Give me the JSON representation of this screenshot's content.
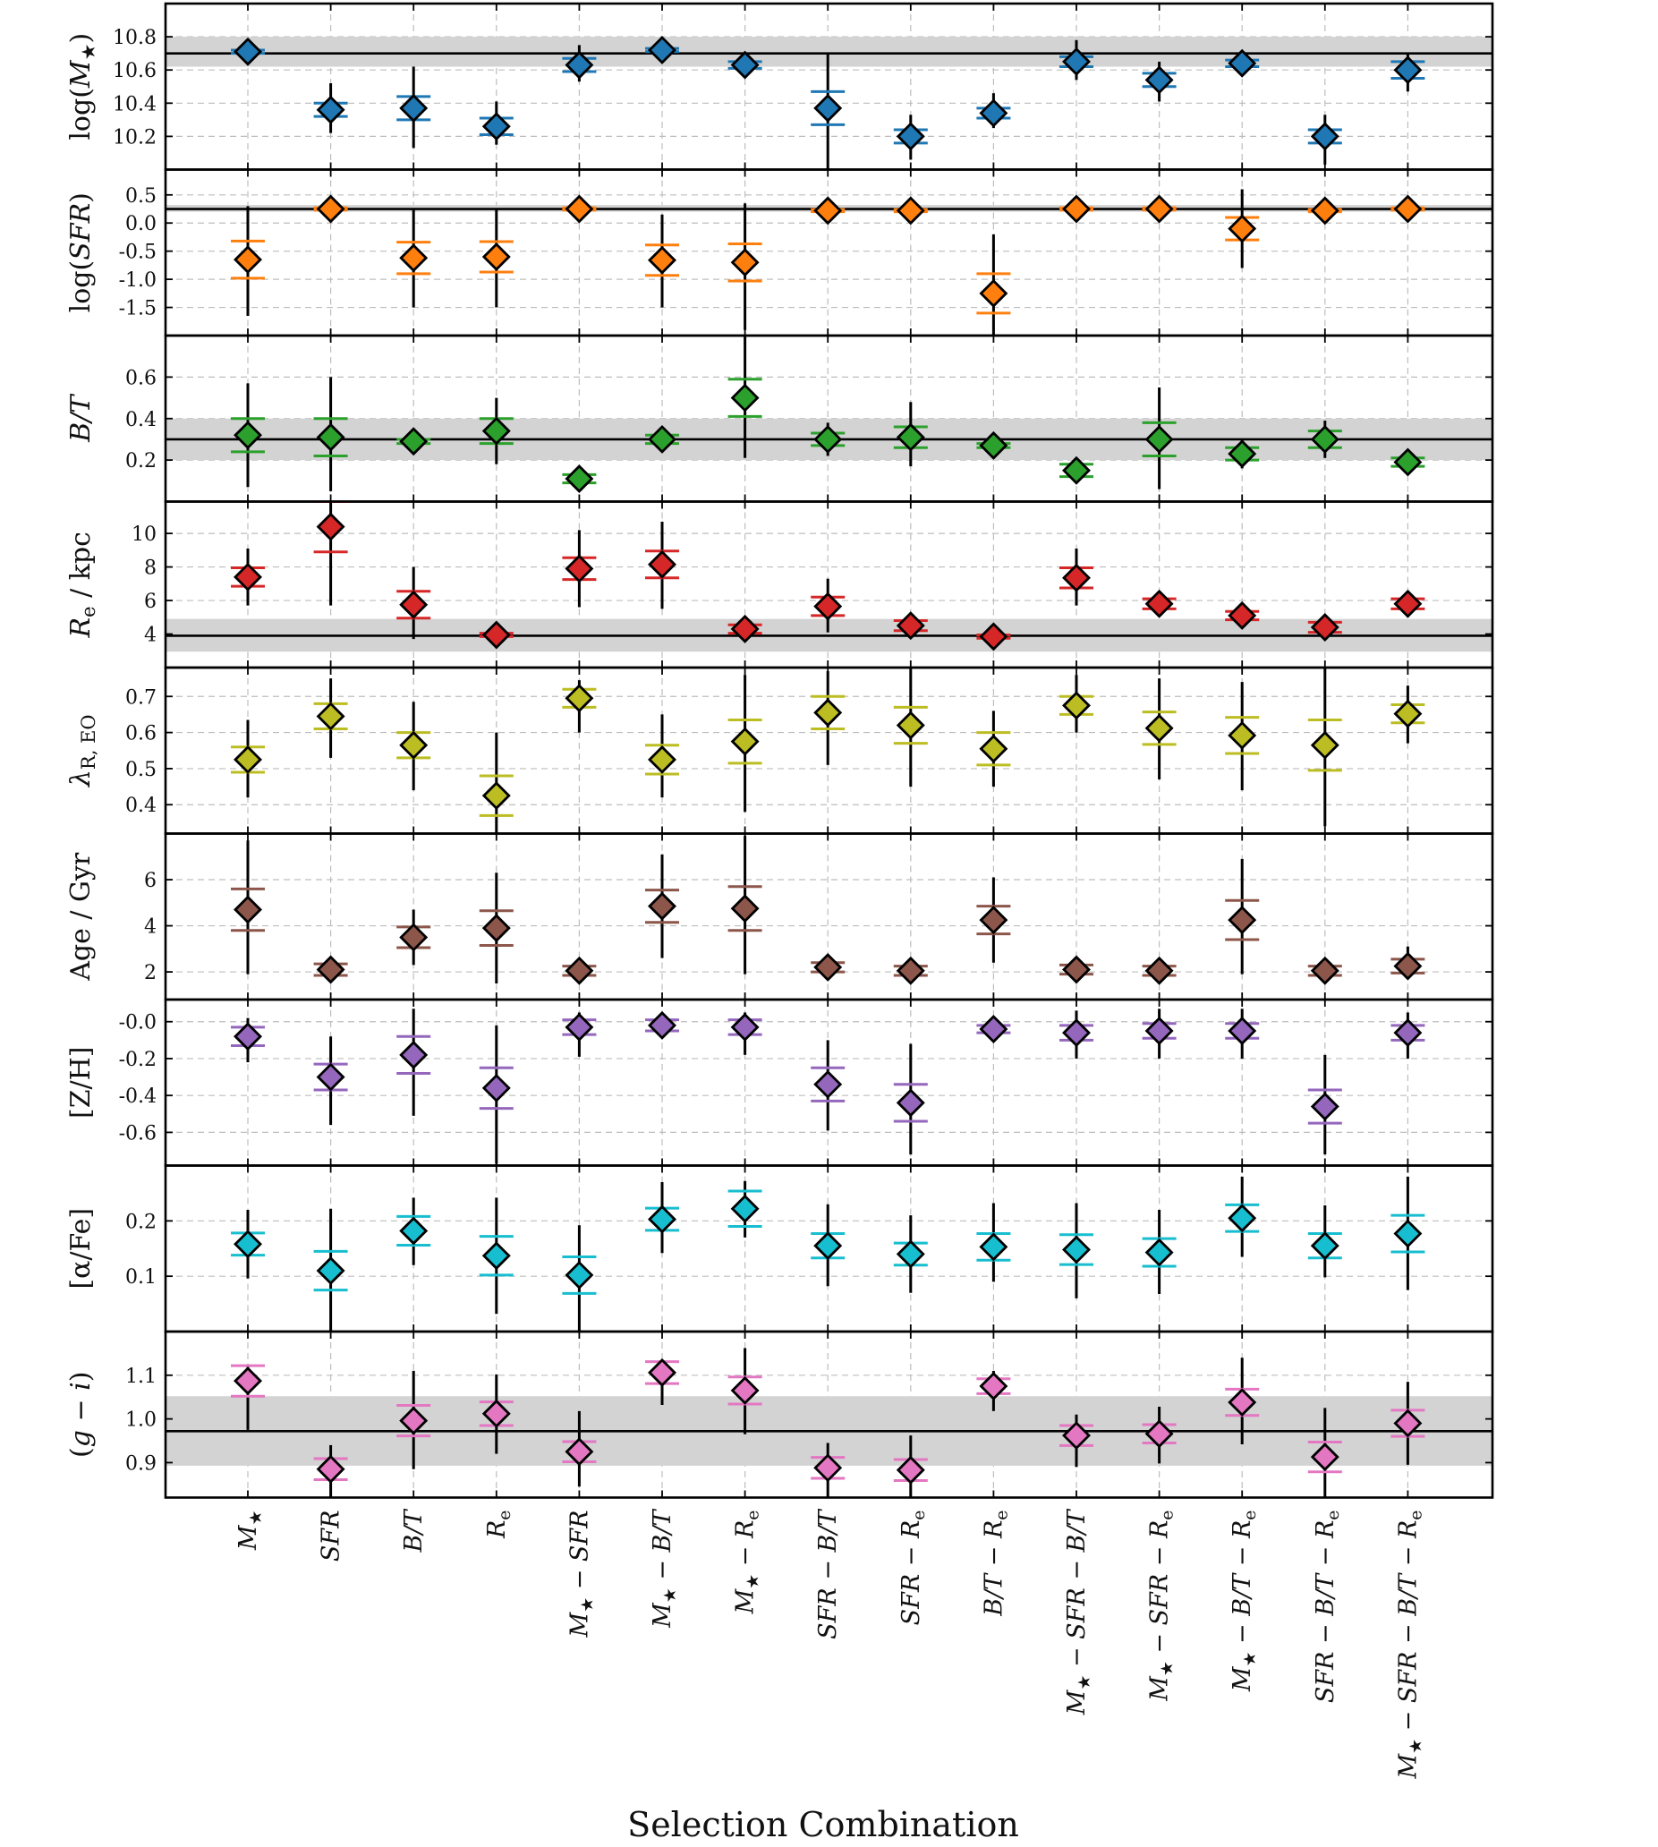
{
  "chart_data": {
    "type": "scatter",
    "xlabel": "Selection Combination",
    "categories": [
      "M★",
      "SFR",
      "B/T",
      "Re",
      "M★ − SFR",
      "M★ − B/T",
      "M★ − Re",
      "SFR − B/T",
      "SFR − Re",
      "B/T − Re",
      "M★ − SFR − B/T",
      "M★ − SFR − Re",
      "M★ − B/T − Re",
      "SFR − B/T − Re",
      "M★ − SFR − B/T − Re"
    ],
    "panels": [
      {
        "ylabel": "log(M★)",
        "color": "#1f77b4",
        "ylim": [
          10.0,
          11.0
        ],
        "ticks": [
          10.2,
          10.4,
          10.6,
          10.8
        ],
        "tick_labels": [
          "10.2",
          "10.4",
          "10.6",
          "10.8"
        ],
        "reference": 10.7,
        "band": [
          10.62,
          10.8
        ],
        "values": [
          10.71,
          10.36,
          10.37,
          10.26,
          10.63,
          10.72,
          10.63,
          10.37,
          10.2,
          10.34,
          10.65,
          10.54,
          10.64,
          10.2,
          10.6
        ],
        "err": [
          0.01,
          0.04,
          0.07,
          0.05,
          0.04,
          0.01,
          0.02,
          0.1,
          0.04,
          0.03,
          0.03,
          0.04,
          0.02,
          0.04,
          0.05
        ],
        "range": [
          [
            10.69,
            10.73
          ],
          [
            10.22,
            10.52
          ],
          [
            10.13,
            10.62
          ],
          [
            10.15,
            10.41
          ],
          [
            10.53,
            10.75
          ],
          [
            10.7,
            10.74
          ],
          [
            10.6,
            10.66
          ],
          [
            10.0,
            10.7
          ],
          [
            10.06,
            10.33
          ],
          [
            10.25,
            10.46
          ],
          [
            10.54,
            10.78
          ],
          [
            10.41,
            10.65
          ],
          [
            10.6,
            10.68
          ],
          [
            10.03,
            10.33
          ],
          [
            10.47,
            10.7
          ]
        ]
      },
      {
        "ylabel": "log(SFR)",
        "color": "#ff7f0e",
        "ylim": [
          -2.0,
          0.95
        ],
        "ticks": [
          -1.5,
          -1.0,
          -0.5,
          0.0,
          0.5
        ],
        "tick_labels": [
          "-1.5",
          "-1.0",
          "-0.5",
          "0.0",
          "0.5"
        ],
        "reference": 0.25,
        "band": [
          0.2,
          0.32
        ],
        "values": [
          -0.65,
          0.25,
          -0.62,
          -0.6,
          0.25,
          -0.66,
          -0.7,
          0.22,
          0.22,
          -1.25,
          0.25,
          0.25,
          -0.1,
          0.22,
          0.25
        ],
        "err": [
          0.33,
          0.02,
          0.28,
          0.27,
          0.02,
          0.27,
          0.33,
          0.02,
          0.02,
          0.35,
          0.02,
          0.02,
          0.2,
          0.02,
          0.02
        ],
        "range": [
          [
            -1.65,
            0.3
          ],
          [
            0.2,
            0.3
          ],
          [
            -1.5,
            0.25
          ],
          [
            -1.5,
            0.25
          ],
          [
            0.2,
            0.3
          ],
          [
            -1.5,
            0.15
          ],
          [
            -1.9,
            0.35
          ],
          [
            0.18,
            0.28
          ],
          [
            0.18,
            0.28
          ],
          [
            -2.0,
            -0.2
          ],
          [
            0.2,
            0.3
          ],
          [
            0.2,
            0.3
          ],
          [
            -0.8,
            0.6
          ],
          [
            0.18,
            0.28
          ],
          [
            0.2,
            0.3
          ]
        ]
      },
      {
        "ylabel": "B/T",
        "color": "#2ca02c",
        "ylim": [
          0.0,
          0.8
        ],
        "ticks": [
          0.2,
          0.4,
          0.6
        ],
        "tick_labels": [
          "0.2",
          "0.4",
          "0.6"
        ],
        "reference": 0.3,
        "band": [
          0.2,
          0.4
        ],
        "values": [
          0.32,
          0.31,
          0.29,
          0.34,
          0.11,
          0.3,
          0.5,
          0.3,
          0.31,
          0.27,
          0.15,
          0.3,
          0.23,
          0.3,
          0.19
        ],
        "err": [
          0.08,
          0.09,
          0.01,
          0.06,
          0.02,
          0.02,
          0.09,
          0.03,
          0.05,
          0.01,
          0.03,
          0.08,
          0.03,
          0.04,
          0.02
        ],
        "range": [
          [
            0.07,
            0.57
          ],
          [
            0.05,
            0.6
          ],
          [
            0.27,
            0.31
          ],
          [
            0.18,
            0.5
          ],
          [
            0.08,
            0.14
          ],
          [
            0.27,
            0.33
          ],
          [
            0.21,
            0.8
          ],
          [
            0.22,
            0.38
          ],
          [
            0.17,
            0.48
          ],
          [
            0.25,
            0.29
          ],
          [
            0.1,
            0.2
          ],
          [
            0.06,
            0.55
          ],
          [
            0.16,
            0.3
          ],
          [
            0.21,
            0.39
          ],
          [
            0.15,
            0.23
          ]
        ]
      },
      {
        "ylabel": "Re / kpc",
        "color": "#d62728",
        "ylim": [
          2.0,
          11.9
        ],
        "ticks": [
          4,
          6,
          8,
          10
        ],
        "tick_labels": [
          "4",
          "6",
          "8",
          "10"
        ],
        "reference": 3.9,
        "band": [
          2.95,
          4.9
        ],
        "values": [
          7.4,
          10.4,
          5.75,
          3.95,
          7.9,
          8.15,
          4.3,
          5.65,
          4.5,
          3.85,
          7.35,
          5.8,
          5.1,
          4.4,
          5.8
        ],
        "err": [
          0.55,
          1.5,
          0.8,
          0.1,
          0.65,
          0.8,
          0.25,
          0.55,
          0.3,
          0.1,
          0.6,
          0.3,
          0.25,
          0.3,
          0.3
        ],
        "range": [
          [
            5.7,
            9.1
          ],
          [
            5.7,
            11.9
          ],
          [
            3.7,
            8.0
          ],
          [
            3.7,
            4.2
          ],
          [
            5.6,
            10.2
          ],
          [
            5.5,
            10.7
          ],
          [
            3.9,
            4.7
          ],
          [
            4.1,
            7.3
          ],
          [
            4.0,
            5.0
          ],
          [
            3.7,
            4.0
          ],
          [
            5.7,
            9.1
          ],
          [
            5.3,
            6.3
          ],
          [
            4.7,
            5.5
          ],
          [
            3.8,
            5.0
          ],
          [
            5.3,
            6.3
          ]
        ]
      },
      {
        "ylabel": "λR, EO",
        "color": "#bcbd22",
        "ylim": [
          0.32,
          0.78
        ],
        "ticks": [
          0.4,
          0.5,
          0.6,
          0.7
        ],
        "tick_labels": [
          "0.4",
          "0.5",
          "0.6",
          "0.7"
        ],
        "reference": null,
        "band": null,
        "values": [
          0.525,
          0.645,
          0.565,
          0.425,
          0.695,
          0.525,
          0.575,
          0.655,
          0.62,
          0.555,
          0.675,
          0.612,
          0.592,
          0.565,
          0.652
        ],
        "err": [
          0.035,
          0.035,
          0.035,
          0.055,
          0.025,
          0.04,
          0.06,
          0.045,
          0.05,
          0.045,
          0.025,
          0.045,
          0.05,
          0.07,
          0.025
        ],
        "range": [
          [
            0.42,
            0.635
          ],
          [
            0.53,
            0.75
          ],
          [
            0.44,
            0.685
          ],
          [
            0.32,
            0.6
          ],
          [
            0.6,
            0.745
          ],
          [
            0.42,
            0.65
          ],
          [
            0.38,
            0.76
          ],
          [
            0.51,
            0.77
          ],
          [
            0.45,
            0.78
          ],
          [
            0.45,
            0.66
          ],
          [
            0.6,
            0.76
          ],
          [
            0.47,
            0.75
          ],
          [
            0.44,
            0.74
          ],
          [
            0.34,
            0.78
          ],
          [
            0.57,
            0.73
          ]
        ]
      },
      {
        "ylabel": "Age / Gyr",
        "color": "#8c564b",
        "ylim": [
          0.8,
          8.0
        ],
        "ticks": [
          2,
          4,
          6
        ],
        "tick_labels": [
          "2",
          "4",
          "6"
        ],
        "reference": null,
        "band": null,
        "values": [
          4.7,
          2.1,
          3.5,
          3.9,
          2.05,
          4.85,
          4.75,
          2.2,
          2.05,
          4.25,
          2.1,
          2.05,
          4.25,
          2.05,
          2.25
        ],
        "err": [
          0.9,
          0.25,
          0.45,
          0.75,
          0.2,
          0.7,
          0.95,
          0.2,
          0.2,
          0.6,
          0.2,
          0.2,
          0.85,
          0.2,
          0.3
        ],
        "range": [
          [
            1.9,
            7.7
          ],
          [
            1.7,
            2.5
          ],
          [
            2.3,
            4.7
          ],
          [
            1.5,
            6.3
          ],
          [
            1.7,
            2.4
          ],
          [
            2.6,
            7.1
          ],
          [
            1.9,
            7.9
          ],
          [
            1.8,
            2.6
          ],
          [
            1.7,
            2.4
          ],
          [
            2.4,
            6.1
          ],
          [
            1.8,
            2.4
          ],
          [
            1.7,
            2.4
          ],
          [
            1.9,
            6.9
          ],
          [
            1.7,
            2.4
          ],
          [
            1.7,
            3.1
          ]
        ]
      },
      {
        "ylabel": "[Z/H]",
        "color": "#9467bd",
        "ylim": [
          -0.78,
          0.12
        ],
        "ticks": [
          -0.6,
          -0.4,
          -0.2,
          -0.0
        ],
        "tick_labels": [
          "-0.6",
          "-0.4",
          "-0.2",
          "-0.0"
        ],
        "reference": null,
        "band": null,
        "values": [
          -0.08,
          -0.3,
          -0.18,
          -0.36,
          -0.03,
          -0.02,
          -0.03,
          -0.34,
          -0.44,
          -0.04,
          -0.06,
          -0.05,
          -0.05,
          -0.46,
          -0.06
        ],
        "err": [
          0.05,
          0.07,
          0.1,
          0.11,
          0.04,
          0.03,
          0.04,
          0.09,
          0.1,
          0.02,
          0.04,
          0.04,
          0.04,
          0.09,
          0.04
        ],
        "range": [
          [
            -0.22,
            0.02
          ],
          [
            -0.56,
            -0.08
          ],
          [
            -0.51,
            0.07
          ],
          [
            -0.77,
            -0.02
          ],
          [
            -0.19,
            0.05
          ],
          [
            -0.08,
            0.05
          ],
          [
            -0.18,
            0.05
          ],
          [
            -0.59,
            -0.1
          ],
          [
            -0.72,
            -0.12
          ],
          [
            -0.09,
            0.01
          ],
          [
            -0.2,
            0.06
          ],
          [
            -0.2,
            0.07
          ],
          [
            -0.2,
            0.07
          ],
          [
            -0.72,
            -0.18
          ],
          [
            -0.2,
            0.05
          ]
        ]
      },
      {
        "ylabel": "[α/Fe]",
        "color": "#17becf",
        "ylim": [
          0.0,
          0.3
        ],
        "ticks": [
          0.1,
          0.2
        ],
        "tick_labels": [
          "0.1",
          "0.2"
        ],
        "reference": null,
        "band": null,
        "values": [
          0.158,
          0.11,
          0.182,
          0.137,
          0.102,
          0.203,
          0.222,
          0.155,
          0.14,
          0.153,
          0.148,
          0.143,
          0.205,
          0.155,
          0.177
        ],
        "err": [
          0.02,
          0.035,
          0.026,
          0.035,
          0.033,
          0.02,
          0.032,
          0.022,
          0.02,
          0.024,
          0.027,
          0.025,
          0.024,
          0.022,
          0.033
        ],
        "range": [
          [
            0.096,
            0.22
          ],
          [
            0.0,
            0.222
          ],
          [
            0.12,
            0.242
          ],
          [
            0.032,
            0.242
          ],
          [
            0.0,
            0.192
          ],
          [
            0.142,
            0.27
          ],
          [
            0.17,
            0.272
          ],
          [
            0.082,
            0.23
          ],
          [
            0.07,
            0.21
          ],
          [
            0.09,
            0.232
          ],
          [
            0.06,
            0.232
          ],
          [
            0.068,
            0.22
          ],
          [
            0.135,
            0.28
          ],
          [
            0.098,
            0.228
          ],
          [
            0.075,
            0.28
          ]
        ]
      },
      {
        "ylabel": "(g − i)",
        "color": "#e377c2",
        "ylim": [
          0.82,
          1.2
        ],
        "ticks": [
          0.9,
          1.0,
          1.1
        ],
        "tick_labels": [
          "0.9",
          "1.0",
          "1.1"
        ],
        "reference": 0.972,
        "band": [
          0.893,
          1.052
        ],
        "values": [
          1.087,
          0.885,
          0.996,
          1.012,
          0.925,
          1.106,
          1.065,
          0.888,
          0.883,
          1.075,
          0.962,
          0.966,
          1.038,
          0.913,
          0.99
        ],
        "err": [
          0.035,
          0.024,
          0.035,
          0.027,
          0.023,
          0.025,
          0.031,
          0.024,
          0.024,
          0.017,
          0.023,
          0.021,
          0.03,
          0.034,
          0.03
        ],
        "range": [
          [
            0.975,
            1.125
          ],
          [
            0.82,
            0.94
          ],
          [
            0.885,
            1.11
          ],
          [
            0.92,
            1.102
          ],
          [
            0.845,
            1.018
          ],
          [
            1.032,
            1.132
          ],
          [
            0.965,
            1.162
          ],
          [
            0.82,
            0.945
          ],
          [
            0.82,
            0.962
          ],
          [
            1.018,
            1.11
          ],
          [
            0.89,
            1.01
          ],
          [
            0.898,
            1.028
          ],
          [
            0.942,
            1.14
          ],
          [
            0.82,
            1.025
          ],
          [
            0.895,
            1.085
          ]
        ]
      }
    ]
  }
}
